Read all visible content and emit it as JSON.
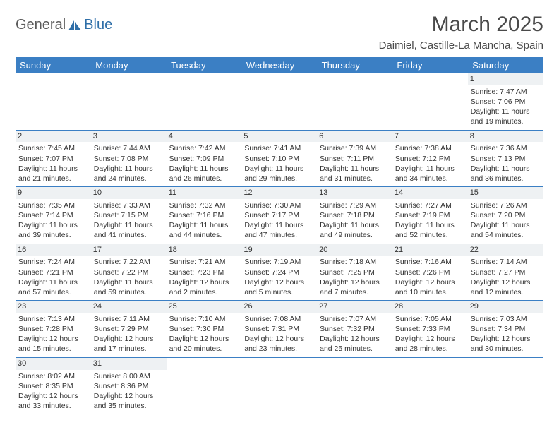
{
  "logo": {
    "word1": "General",
    "word2": "Blue"
  },
  "title": "March 2025",
  "location": "Daimiel, Castille-La Mancha, Spain",
  "colors": {
    "header_bg": "#3b7fc4",
    "header_text": "#ffffff",
    "daynum_bg": "#eef1f3",
    "border": "#3b7fc4",
    "logo_grey": "#5a5a5a",
    "logo_blue": "#2f6fa8"
  },
  "day_headers": [
    "Sunday",
    "Monday",
    "Tuesday",
    "Wednesday",
    "Thursday",
    "Friday",
    "Saturday"
  ],
  "weeks": [
    [
      null,
      null,
      null,
      null,
      null,
      null,
      {
        "n": "1",
        "sr": "Sunrise: 7:47 AM",
        "ss": "Sunset: 7:06 PM",
        "dl1": "Daylight: 11 hours",
        "dl2": "and 19 minutes."
      }
    ],
    [
      {
        "n": "2",
        "sr": "Sunrise: 7:45 AM",
        "ss": "Sunset: 7:07 PM",
        "dl1": "Daylight: 11 hours",
        "dl2": "and 21 minutes."
      },
      {
        "n": "3",
        "sr": "Sunrise: 7:44 AM",
        "ss": "Sunset: 7:08 PM",
        "dl1": "Daylight: 11 hours",
        "dl2": "and 24 minutes."
      },
      {
        "n": "4",
        "sr": "Sunrise: 7:42 AM",
        "ss": "Sunset: 7:09 PM",
        "dl1": "Daylight: 11 hours",
        "dl2": "and 26 minutes."
      },
      {
        "n": "5",
        "sr": "Sunrise: 7:41 AM",
        "ss": "Sunset: 7:10 PM",
        "dl1": "Daylight: 11 hours",
        "dl2": "and 29 minutes."
      },
      {
        "n": "6",
        "sr": "Sunrise: 7:39 AM",
        "ss": "Sunset: 7:11 PM",
        "dl1": "Daylight: 11 hours",
        "dl2": "and 31 minutes."
      },
      {
        "n": "7",
        "sr": "Sunrise: 7:38 AM",
        "ss": "Sunset: 7:12 PM",
        "dl1": "Daylight: 11 hours",
        "dl2": "and 34 minutes."
      },
      {
        "n": "8",
        "sr": "Sunrise: 7:36 AM",
        "ss": "Sunset: 7:13 PM",
        "dl1": "Daylight: 11 hours",
        "dl2": "and 36 minutes."
      }
    ],
    [
      {
        "n": "9",
        "sr": "Sunrise: 7:35 AM",
        "ss": "Sunset: 7:14 PM",
        "dl1": "Daylight: 11 hours",
        "dl2": "and 39 minutes."
      },
      {
        "n": "10",
        "sr": "Sunrise: 7:33 AM",
        "ss": "Sunset: 7:15 PM",
        "dl1": "Daylight: 11 hours",
        "dl2": "and 41 minutes."
      },
      {
        "n": "11",
        "sr": "Sunrise: 7:32 AM",
        "ss": "Sunset: 7:16 PM",
        "dl1": "Daylight: 11 hours",
        "dl2": "and 44 minutes."
      },
      {
        "n": "12",
        "sr": "Sunrise: 7:30 AM",
        "ss": "Sunset: 7:17 PM",
        "dl1": "Daylight: 11 hours",
        "dl2": "and 47 minutes."
      },
      {
        "n": "13",
        "sr": "Sunrise: 7:29 AM",
        "ss": "Sunset: 7:18 PM",
        "dl1": "Daylight: 11 hours",
        "dl2": "and 49 minutes."
      },
      {
        "n": "14",
        "sr": "Sunrise: 7:27 AM",
        "ss": "Sunset: 7:19 PM",
        "dl1": "Daylight: 11 hours",
        "dl2": "and 52 minutes."
      },
      {
        "n": "15",
        "sr": "Sunrise: 7:26 AM",
        "ss": "Sunset: 7:20 PM",
        "dl1": "Daylight: 11 hours",
        "dl2": "and 54 minutes."
      }
    ],
    [
      {
        "n": "16",
        "sr": "Sunrise: 7:24 AM",
        "ss": "Sunset: 7:21 PM",
        "dl1": "Daylight: 11 hours",
        "dl2": "and 57 minutes."
      },
      {
        "n": "17",
        "sr": "Sunrise: 7:22 AM",
        "ss": "Sunset: 7:22 PM",
        "dl1": "Daylight: 11 hours",
        "dl2": "and 59 minutes."
      },
      {
        "n": "18",
        "sr": "Sunrise: 7:21 AM",
        "ss": "Sunset: 7:23 PM",
        "dl1": "Daylight: 12 hours",
        "dl2": "and 2 minutes."
      },
      {
        "n": "19",
        "sr": "Sunrise: 7:19 AM",
        "ss": "Sunset: 7:24 PM",
        "dl1": "Daylight: 12 hours",
        "dl2": "and 5 minutes."
      },
      {
        "n": "20",
        "sr": "Sunrise: 7:18 AM",
        "ss": "Sunset: 7:25 PM",
        "dl1": "Daylight: 12 hours",
        "dl2": "and 7 minutes."
      },
      {
        "n": "21",
        "sr": "Sunrise: 7:16 AM",
        "ss": "Sunset: 7:26 PM",
        "dl1": "Daylight: 12 hours",
        "dl2": "and 10 minutes."
      },
      {
        "n": "22",
        "sr": "Sunrise: 7:14 AM",
        "ss": "Sunset: 7:27 PM",
        "dl1": "Daylight: 12 hours",
        "dl2": "and 12 minutes."
      }
    ],
    [
      {
        "n": "23",
        "sr": "Sunrise: 7:13 AM",
        "ss": "Sunset: 7:28 PM",
        "dl1": "Daylight: 12 hours",
        "dl2": "and 15 minutes."
      },
      {
        "n": "24",
        "sr": "Sunrise: 7:11 AM",
        "ss": "Sunset: 7:29 PM",
        "dl1": "Daylight: 12 hours",
        "dl2": "and 17 minutes."
      },
      {
        "n": "25",
        "sr": "Sunrise: 7:10 AM",
        "ss": "Sunset: 7:30 PM",
        "dl1": "Daylight: 12 hours",
        "dl2": "and 20 minutes."
      },
      {
        "n": "26",
        "sr": "Sunrise: 7:08 AM",
        "ss": "Sunset: 7:31 PM",
        "dl1": "Daylight: 12 hours",
        "dl2": "and 23 minutes."
      },
      {
        "n": "27",
        "sr": "Sunrise: 7:07 AM",
        "ss": "Sunset: 7:32 PM",
        "dl1": "Daylight: 12 hours",
        "dl2": "and 25 minutes."
      },
      {
        "n": "28",
        "sr": "Sunrise: 7:05 AM",
        "ss": "Sunset: 7:33 PM",
        "dl1": "Daylight: 12 hours",
        "dl2": "and 28 minutes."
      },
      {
        "n": "29",
        "sr": "Sunrise: 7:03 AM",
        "ss": "Sunset: 7:34 PM",
        "dl1": "Daylight: 12 hours",
        "dl2": "and 30 minutes."
      }
    ],
    [
      {
        "n": "30",
        "sr": "Sunrise: 8:02 AM",
        "ss": "Sunset: 8:35 PM",
        "dl1": "Daylight: 12 hours",
        "dl2": "and 33 minutes."
      },
      {
        "n": "31",
        "sr": "Sunrise: 8:00 AM",
        "ss": "Sunset: 8:36 PM",
        "dl1": "Daylight: 12 hours",
        "dl2": "and 35 minutes."
      },
      null,
      null,
      null,
      null,
      null
    ]
  ]
}
